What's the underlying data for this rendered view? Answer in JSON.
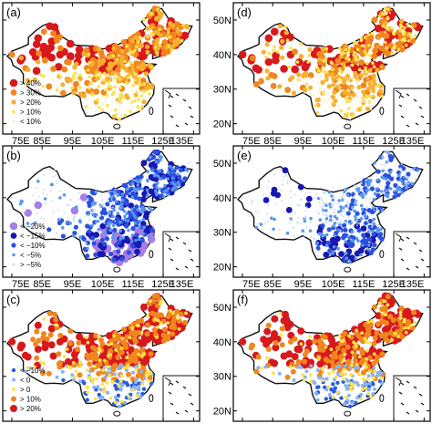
{
  "figure": {
    "lon_ticks": [
      "75E",
      "85E",
      "95E",
      "105E",
      "115E",
      "125E",
      "135E"
    ],
    "lat_ticks": [
      "20N",
      "30N",
      "40N",
      "50N"
    ],
    "map_extent": {
      "lon": [
        72,
        137
      ],
      "lat": [
        17,
        55
      ]
    },
    "panels": [
      {
        "label": "(a)",
        "scheme": "warm",
        "legend": [
          "> 40%",
          "> 30%",
          "> 20%",
          "> 10%",
          "< 10%"
        ],
        "legend_colors": [
          "#d7191c",
          "#f0861e",
          "#f6b02e",
          "#fde24a",
          "#fbe9a6"
        ]
      },
      {
        "label": "(b)",
        "scheme": "cool",
        "legend": [
          "< −20%",
          "< −15%",
          "< −10%",
          "< −5%",
          "> −5%"
        ],
        "legend_colors": [
          "#a77ee6",
          "#1818b0",
          "#2a50e0",
          "#5a96ef",
          "#bcd6f7"
        ]
      },
      {
        "label": "(c)",
        "scheme": "mixed",
        "legend": [
          "< −10%",
          "< 0",
          "> 0",
          "> 10%",
          "> 20%"
        ],
        "legend_colors": [
          "#2a5ce0",
          "#8ab2f2",
          "#fde24a",
          "#f0861e",
          "#d7191c"
        ]
      },
      {
        "label": "(d)",
        "scheme": "warm"
      },
      {
        "label": "(e)",
        "scheme": "cool"
      },
      {
        "label": "(f)",
        "scheme": "mixed"
      }
    ]
  }
}
